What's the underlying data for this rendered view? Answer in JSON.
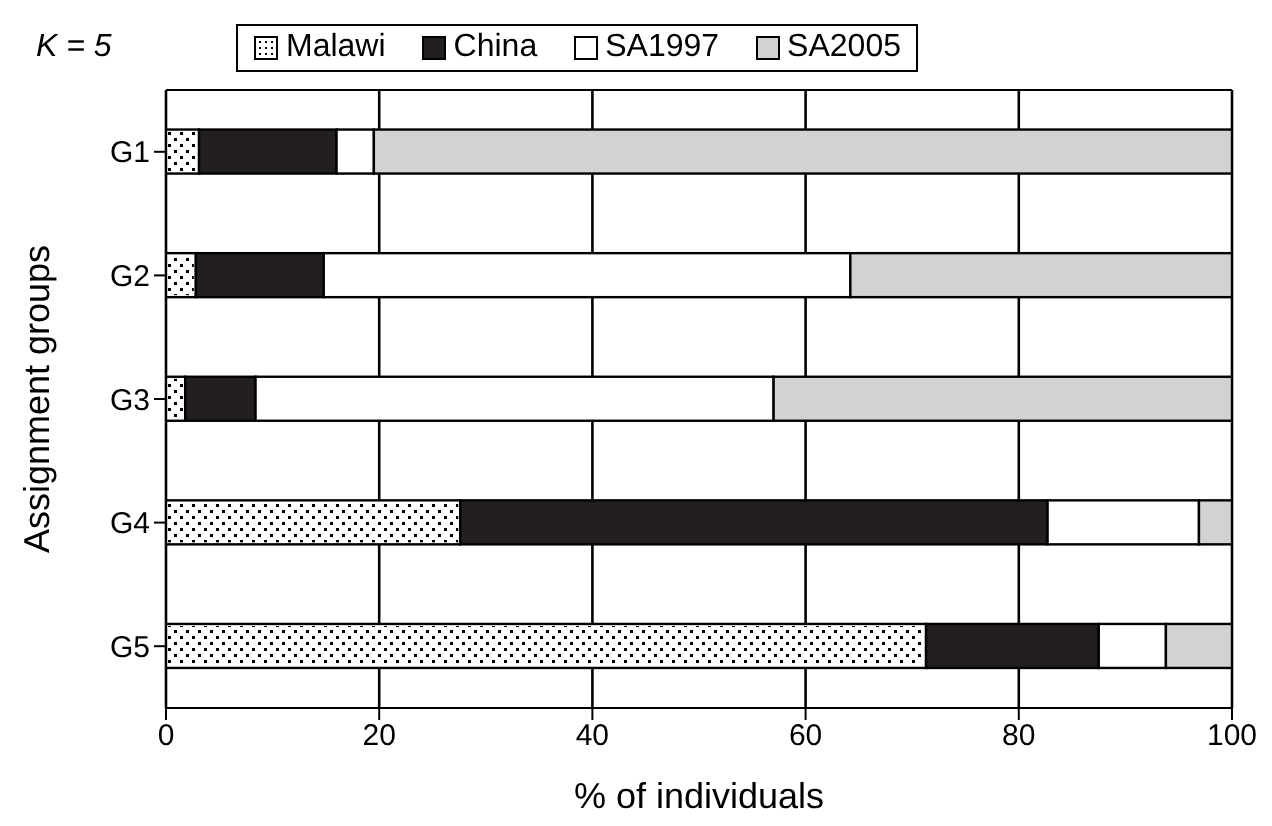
{
  "chart_data": {
    "type": "bar",
    "orientation": "horizontal",
    "stacked": true,
    "title": "K = 5",
    "xlabel": "% of individuals",
    "ylabel": "Assignment groups",
    "categories": [
      "G1",
      "G2",
      "G3",
      "G4",
      "G5"
    ],
    "series": [
      {
        "name": "Malawi",
        "color": "#ffffff",
        "values": [
          3.1,
          2.8,
          1.8,
          27.6,
          71.3
        ]
      },
      {
        "name": "China",
        "color": "#231f20",
        "values": [
          12.9,
          12,
          6.6,
          55.1,
          16.2
        ]
      },
      {
        "name": "SA1997",
        "color": "#ffffff",
        "values": [
          3.5,
          49.4,
          48.6,
          14.2,
          6.3
        ]
      },
      {
        "name": "SA2005",
        "color": "#d1d2d4",
        "values": [
          80.5,
          35.8,
          43,
          3.1,
          6.2
        ]
      }
    ],
    "xlim": [
      0,
      100
    ],
    "xticks": [
      0,
      20,
      40,
      60,
      80,
      100
    ],
    "grid": "x",
    "legend": "top"
  }
}
